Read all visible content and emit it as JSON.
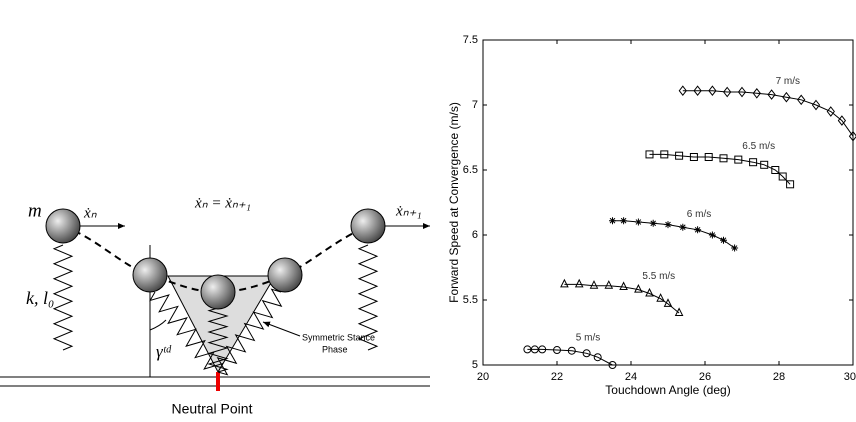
{
  "diagram": {
    "mass_label": "m",
    "spring_label": "k, l₀",
    "velocity_in": "ẋₙ",
    "velocity_equation": "ẋₙ = ẋₙ₊₁",
    "velocity_out": "ẋₙ₊₁",
    "angle_label": "γᵗᵈ",
    "stance_label": [
      "Symmetric Stance",
      "Phase"
    ],
    "neutral_point": "Neutral Point"
  },
  "chart_data": {
    "type": "line",
    "xlabel": "Touchdown Angle (deg)",
    "ylabel": "Forward Speed at Convergence (m/s)",
    "xlim": [
      20,
      30
    ],
    "xticks": [
      20,
      22,
      24,
      26,
      28,
      30
    ],
    "ylim": [
      5,
      7.5
    ],
    "yticks": [
      5,
      5.5,
      6,
      6.5,
      7,
      7.5
    ],
    "color": "#000000",
    "series": [
      {
        "name": "5 m/s",
        "marker": "circle",
        "x": [
          21.2,
          21.4,
          21.6,
          22.0,
          22.4,
          22.8,
          23.1,
          23.5
        ],
        "values": [
          5.12,
          5.12,
          5.12,
          5.115,
          5.11,
          5.09,
          5.06,
          5.0
        ]
      },
      {
        "name": "5.5 m/s",
        "marker": "triangle",
        "x": [
          22.2,
          22.6,
          23.0,
          23.4,
          23.8,
          24.2,
          24.5,
          24.8,
          25.0,
          25.3
        ],
        "values": [
          5.62,
          5.62,
          5.61,
          5.61,
          5.6,
          5.58,
          5.55,
          5.51,
          5.47,
          5.4
        ]
      },
      {
        "name": "6 m/s",
        "marker": "star",
        "x": [
          23.5,
          23.8,
          24.2,
          24.6,
          25.0,
          25.4,
          25.8,
          26.2,
          26.5,
          26.8
        ],
        "values": [
          6.11,
          6.11,
          6.1,
          6.09,
          6.08,
          6.06,
          6.04,
          6.0,
          5.96,
          5.9
        ]
      },
      {
        "name": "6.5 m/s",
        "marker": "square",
        "x": [
          24.5,
          24.9,
          25.3,
          25.7,
          26.1,
          26.5,
          26.9,
          27.3,
          27.6,
          27.9,
          28.1,
          28.3
        ],
        "values": [
          6.62,
          6.62,
          6.61,
          6.6,
          6.6,
          6.59,
          6.58,
          6.56,
          6.54,
          6.5,
          6.45,
          6.39
        ]
      },
      {
        "name": "7 m/s",
        "marker": "diamond",
        "x": [
          25.4,
          25.8,
          26.2,
          26.6,
          27.0,
          27.4,
          27.8,
          28.2,
          28.6,
          29.0,
          29.4,
          29.7,
          30.0
        ],
        "values": [
          7.11,
          7.11,
          7.11,
          7.1,
          7.1,
          7.09,
          7.08,
          7.06,
          7.04,
          7.0,
          6.95,
          6.88,
          6.76
        ]
      }
    ]
  }
}
